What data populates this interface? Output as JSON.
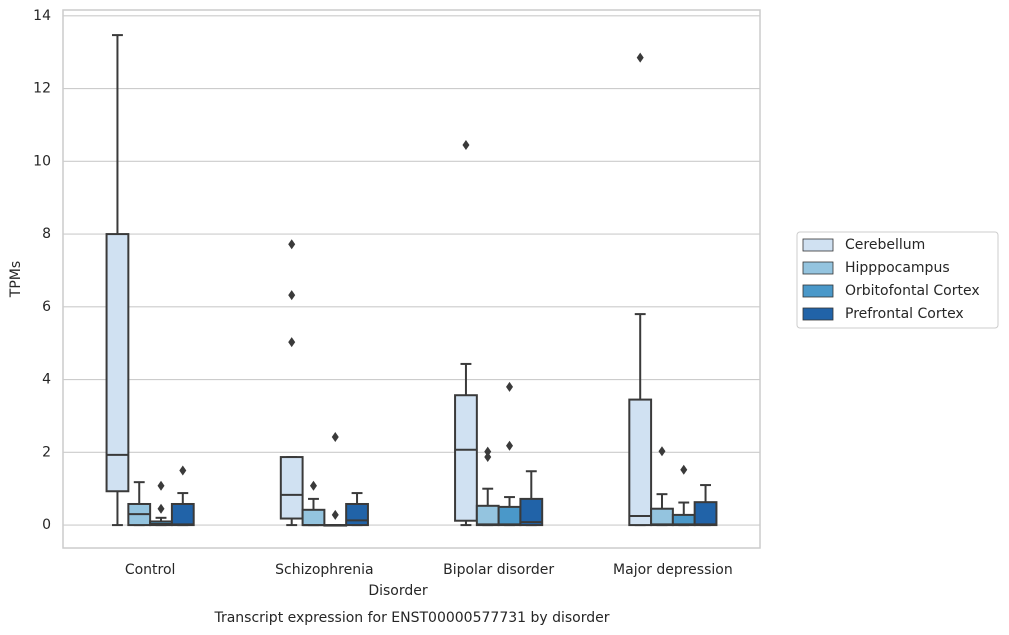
{
  "chart_data": {
    "type": "box",
    "title": "Transcript expression for ENST00000577731 by disorder",
    "xlabel": "Disorder",
    "ylabel": "TPMs",
    "categories": [
      "Control",
      "Schizophrenia",
      "Bipolar disorder",
      "Major depression"
    ],
    "ylim": [
      -0.63,
      14.16
    ],
    "yticks": [
      0,
      2,
      4,
      6,
      8,
      10,
      12,
      14
    ],
    "grid": true,
    "legend": "right",
    "series": [
      {
        "name": "Cerebellum",
        "color": "#d0e1f2",
        "low": [
          0,
          0,
          0,
          0
        ],
        "q1": [
          0.93,
          0.18,
          0.12,
          0
        ],
        "median": [
          1.93,
          0.83,
          2.07,
          0.25
        ],
        "q3": [
          8.0,
          1.87,
          3.57,
          3.45
        ],
        "high": [
          13.47,
          1.87,
          4.43,
          5.8
        ],
        "outliers": [
          [],
          [
            7.72,
            6.32,
            5.03
          ],
          [
            10.45
          ],
          [
            12.85
          ]
        ]
      },
      {
        "name": "Hipppocampus",
        "color": "#94c4df",
        "low": [
          0,
          0,
          0,
          0
        ],
        "q1": [
          0,
          0,
          0,
          0
        ],
        "median": [
          0.3,
          0,
          0.02,
          0.02
        ],
        "q3": [
          0.58,
          0.42,
          0.53,
          0.45
        ],
        "high": [
          1.18,
          0.72,
          1.0,
          0.85
        ],
        "outliers": [
          [],
          [
            1.08
          ],
          [
            2.02,
            1.87
          ],
          [
            2.03
          ]
        ]
      },
      {
        "name": "Orbitofontal Cortex",
        "color": "#4a98c9",
        "low": [
          0,
          0,
          0,
          0
        ],
        "q1": [
          0,
          0,
          0,
          0
        ],
        "median": [
          0.03,
          0,
          0.02,
          0.02
        ],
        "q3": [
          0.1,
          0,
          0.5,
          0.28
        ],
        "high": [
          0.2,
          0,
          0.77,
          0.62
        ],
        "outliers": [
          [
            1.08,
            0.45
          ],
          [
            2.42,
            0.28
          ],
          [
            3.8,
            2.18
          ],
          [
            1.52
          ]
        ]
      },
      {
        "name": "Prefrontal Cortex",
        "color": "#2163a8",
        "low": [
          0,
          0,
          0,
          0
        ],
        "q1": [
          0,
          0,
          0,
          0
        ],
        "median": [
          0.02,
          0.13,
          0.08,
          0.02
        ],
        "q3": [
          0.58,
          0.58,
          0.72,
          0.63
        ],
        "high": [
          0.88,
          0.88,
          1.48,
          1.1
        ],
        "outliers": [
          [
            1.5
          ],
          [],
          [],
          []
        ]
      }
    ]
  }
}
